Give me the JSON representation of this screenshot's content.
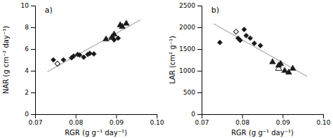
{
  "chart_data": [
    {
      "type": "scatter",
      "title": "a)",
      "xlabel": "RGR (g g⁻¹ day⁻¹)",
      "ylabel": "NAR (g cm⁻² day⁻¹)",
      "xlim": [
        0.07,
        0.1
      ],
      "ylim": [
        0,
        10
      ],
      "xticks": [
        0.07,
        0.08,
        0.09,
        {
          "value": 0.1,
          "label": "0.10"
        }
      ],
      "yticks": [
        0,
        2,
        4,
        6,
        8,
        10
      ],
      "series": [
        {
          "type": "line",
          "color": "#aaaaaa",
          "x": [
            0.073,
            0.096
          ],
          "values": [
            3.9,
            8.7
          ]
        },
        {
          "type": "scatter",
          "marker": "diamond",
          "color": "#1a1a1a",
          "x": [
            0.0745,
            0.077,
            0.079,
            0.0795,
            0.0805,
            0.081,
            0.082,
            0.083,
            0.0835,
            0.0845,
            0.0895,
            0.0905
          ],
          "values": [
            5.0,
            5.0,
            5.2,
            5.35,
            5.5,
            5.45,
            5.25,
            5.5,
            5.6,
            5.55,
            6.85,
            7.0
          ]
        },
        {
          "type": "scatter",
          "marker": "open-diamond",
          "color": "#1a1a1a",
          "x": [
            0.0755
          ],
          "values": [
            4.65
          ]
        },
        {
          "type": "scatter",
          "marker": "triangle",
          "color": "#1a1a1a",
          "x": [
            0.0875,
            0.089,
            0.0895,
            0.091,
            0.0915,
            0.0925
          ],
          "values": [
            6.9,
            7.1,
            7.35,
            8.2,
            8.05,
            8.35
          ]
        },
        {
          "type": "scatter",
          "marker": "open-triangle",
          "color": "#1a1a1a",
          "x": [
            0.089
          ],
          "values": [
            7.05
          ]
        }
      ]
    },
    {
      "type": "scatter",
      "title": "b)",
      "xlabel": "RGR (g g⁻¹ day⁻¹)",
      "ylabel": "LAR (cm² g⁻¹)",
      "xlim": [
        0.07,
        0.1
      ],
      "ylim": [
        0,
        2500
      ],
      "xticks": [
        0.07,
        0.08,
        0.09,
        {
          "value": 0.1,
          "label": "0.10"
        }
      ],
      "yticks": [
        0,
        500,
        1000,
        1500,
        2000,
        2500
      ],
      "series": [
        {
          "type": "line",
          "color": "#aaaaaa",
          "x": [
            0.073,
            0.096
          ],
          "values": [
            2080,
            870
          ]
        },
        {
          "type": "scatter",
          "marker": "diamond",
          "color": "#1a1a1a",
          "x": [
            0.0745,
            0.079,
            0.0795,
            0.0805,
            0.081,
            0.082,
            0.083,
            0.0845
          ],
          "values": [
            1650,
            1750,
            1700,
            1950,
            1810,
            1750,
            1630,
            1580
          ]
        },
        {
          "type": "scatter",
          "marker": "open-diamond",
          "color": "#1a1a1a",
          "x": [
            0.0785
          ],
          "values": [
            1900
          ]
        },
        {
          "type": "scatter",
          "marker": "triangle",
          "color": "#1a1a1a",
          "x": [
            0.0875,
            0.089,
            0.0895,
            0.0905,
            0.0915,
            0.0925
          ],
          "values": [
            1200,
            1120,
            1160,
            1000,
            960,
            1050
          ]
        },
        {
          "type": "scatter",
          "marker": "open-triangle",
          "color": "#1a1a1a",
          "x": [
            0.089
          ],
          "values": [
            1050
          ]
        }
      ]
    }
  ]
}
